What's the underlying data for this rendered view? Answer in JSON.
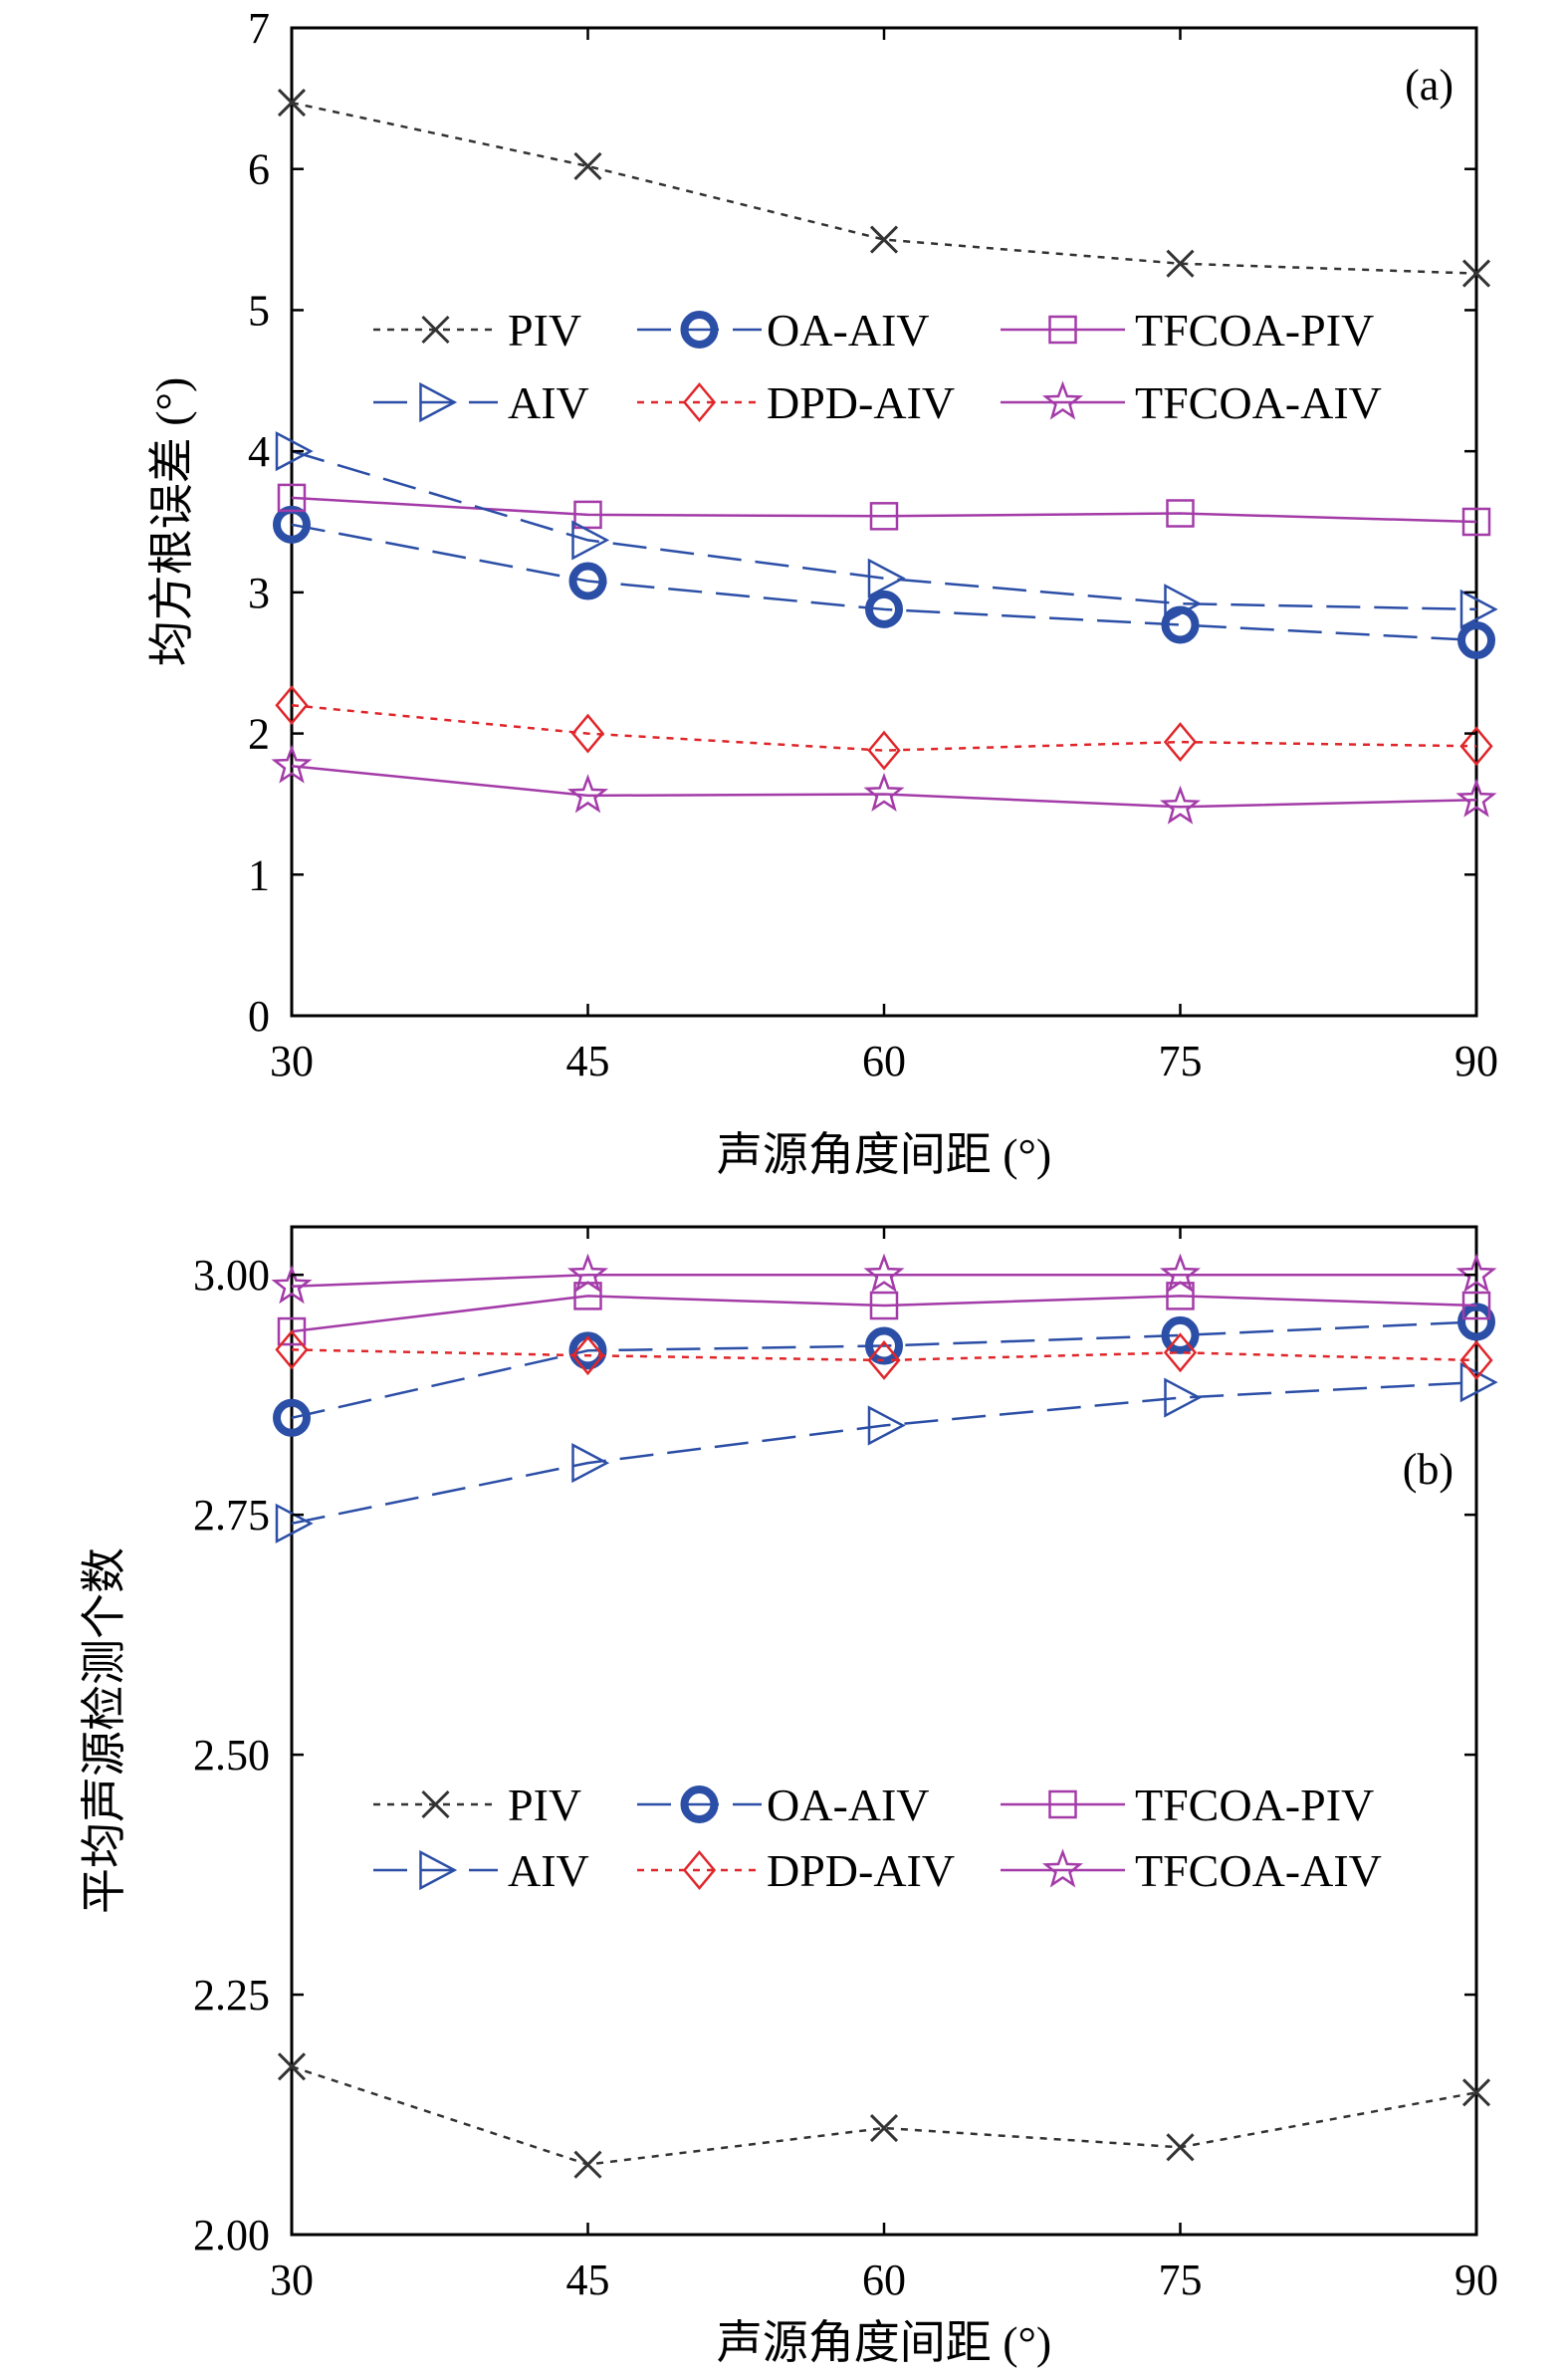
{
  "chart_data": [
    {
      "type": "line",
      "panel_label": "(a)",
      "xlabel": "声源角度间距 (°)",
      "ylabel": "均方根误差 (°)",
      "x": [
        30,
        45,
        60,
        75,
        90
      ],
      "xticks": [
        "30",
        "45",
        "60",
        "75",
        "90"
      ],
      "xlim": [
        30,
        90
      ],
      "ylim": [
        0,
        7
      ],
      "yticks": [
        "0",
        "1",
        "2",
        "3",
        "4",
        "5",
        "6",
        "7"
      ],
      "legend_position": "upper-middle",
      "series": [
        {
          "name": "PIV",
          "values": [
            6.47,
            6.02,
            5.5,
            5.33,
            5.26
          ],
          "color": "#333333",
          "marker": "x",
          "line": "dotted"
        },
        {
          "name": "OA-AIV",
          "values": [
            3.48,
            3.08,
            2.88,
            2.77,
            2.66
          ],
          "color": "#2b4ea6",
          "marker": "circle",
          "line": "dashed"
        },
        {
          "name": "TFCOA-PIV",
          "values": [
            3.67,
            3.55,
            3.54,
            3.56,
            3.5
          ],
          "color": "#a33ba8",
          "marker": "square",
          "line": "solid"
        },
        {
          "name": "AIV",
          "values": [
            4.0,
            3.37,
            3.1,
            2.92,
            2.88
          ],
          "color": "#2b4ea6",
          "marker": "triangle-right",
          "line": "dashed"
        },
        {
          "name": "DPD-AIV",
          "values": [
            2.2,
            2.0,
            1.88,
            1.94,
            1.91
          ],
          "color": "#e0262a",
          "marker": "diamond",
          "line": "dotted"
        },
        {
          "name": "TFCOA-AIV",
          "values": [
            1.77,
            1.56,
            1.57,
            1.48,
            1.53
          ],
          "color": "#a33ba8",
          "marker": "star",
          "line": "solid"
        }
      ]
    },
    {
      "type": "line",
      "panel_label": "(b)",
      "xlabel": "声源角度间距 (°)",
      "ylabel": "平均声源检测个数",
      "x": [
        30,
        45,
        60,
        75,
        90
      ],
      "xticks": [
        "30",
        "45",
        "60",
        "75",
        "90"
      ],
      "xlim": [
        30,
        90
      ],
      "ylim": [
        2.0,
        3.05
      ],
      "yticks": [
        "2.00",
        "2.25",
        "2.50",
        "2.75",
        "3.00"
      ],
      "legend_position": "lower-middle",
      "series": [
        {
          "name": "PIV",
          "values": [
            2.175,
            2.073,
            2.111,
            2.091,
            2.148
          ],
          "color": "#333333",
          "marker": "x",
          "line": "dotted"
        },
        {
          "name": "OA-AIV",
          "values": [
            2.851,
            2.921,
            2.926,
            2.937,
            2.951
          ],
          "color": "#2b4ea6",
          "marker": "circle",
          "line": "dashed"
        },
        {
          "name": "TFCOA-PIV",
          "values": [
            2.941,
            2.978,
            2.968,
            2.978,
            2.968
          ],
          "color": "#a33ba8",
          "marker": "square",
          "line": "solid"
        },
        {
          "name": "AIV",
          "values": [
            2.741,
            2.804,
            2.843,
            2.872,
            2.888
          ],
          "color": "#2b4ea6",
          "marker": "triangle-right",
          "line": "dashed"
        },
        {
          "name": "DPD-AIV",
          "values": [
            2.922,
            2.916,
            2.911,
            2.919,
            2.911
          ],
          "color": "#e0262a",
          "marker": "diamond",
          "line": "dotted"
        },
        {
          "name": "TFCOA-AIV",
          "values": [
            2.988,
            3.0,
            3.0,
            3.0,
            3.0
          ],
          "color": "#a33ba8",
          "marker": "star",
          "line": "solid"
        }
      ]
    }
  ]
}
